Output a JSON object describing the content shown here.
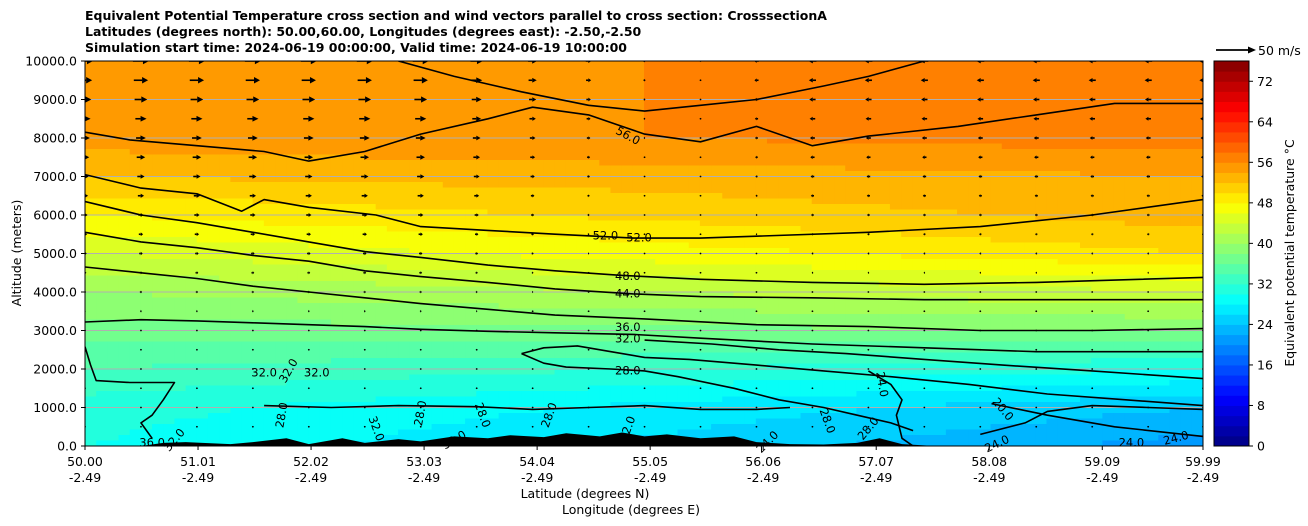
{
  "chart_data": {
    "type": "contourf",
    "title_lines": [
      "Equivalent Potential Temperature cross section and wind vectors parallel to cross section: CrosssectionA",
      "Latitudes (degrees north): 50.00,60.00, Longitudes (degrees east): -2.50,-2.50",
      "Simulation start time: 2024-06-19 00:00:00, Valid time: 2024-06-19 10:00:00"
    ],
    "xlabel_lines": [
      "Latitude (degrees N)",
      "Longitude (degrees E)"
    ],
    "ylabel": "Altitude (meters)",
    "x_ticks": [
      {
        "lat": "50.00",
        "lon": "-2.49"
      },
      {
        "lat": "51.01",
        "lon": "-2.49"
      },
      {
        "lat": "52.02",
        "lon": "-2.49"
      },
      {
        "lat": "53.03",
        "lon": "-2.49"
      },
      {
        "lat": "54.04",
        "lon": "-2.49"
      },
      {
        "lat": "55.05",
        "lon": "-2.49"
      },
      {
        "lat": "56.06",
        "lon": "-2.49"
      },
      {
        "lat": "57.07",
        "lon": "-2.49"
      },
      {
        "lat": "58.08",
        "lon": "-2.49"
      },
      {
        "lat": "59.09",
        "lon": "-2.49"
      },
      {
        "lat": "59.99",
        "lon": "-2.49"
      }
    ],
    "xlim": [
      50.0,
      59.99
    ],
    "ylim": [
      0,
      10000
    ],
    "y_ticks": [
      "0.0",
      "1000.0",
      "2000.0",
      "3000.0",
      "4000.0",
      "5000.0",
      "6000.0",
      "7000.0",
      "8000.0",
      "9000.0",
      "10000.0"
    ],
    "grid": "horizontal",
    "colorbar": {
      "label": "Equivalent potential temperature °C",
      "range": [
        0,
        76
      ],
      "ticks": [
        "0",
        "8",
        "16",
        "24",
        "32",
        "40",
        "48",
        "56",
        "64",
        "72"
      ],
      "colormap": "jet"
    },
    "quiver_key": {
      "label": "50 m/s",
      "speed": 50
    },
    "contours": [
      {
        "level": 56.0,
        "points": [
          [
            50.0,
            8150
          ],
          [
            50.4,
            7950
          ],
          [
            51.0,
            7800
          ],
          [
            51.6,
            7650
          ],
          [
            52.0,
            7400
          ],
          [
            52.5,
            7650
          ],
          [
            53.0,
            8100
          ],
          [
            53.6,
            8500
          ],
          [
            54.0,
            8800
          ],
          [
            54.5,
            8600
          ],
          [
            55.0,
            8100
          ],
          [
            55.5,
            7900
          ],
          [
            56.0,
            8300
          ],
          [
            56.5,
            7800
          ],
          [
            57.0,
            8050
          ],
          [
            57.8,
            8300
          ],
          [
            58.5,
            8600
          ],
          [
            59.2,
            8900
          ],
          [
            59.99,
            8900
          ]
        ]
      },
      {
        "level": 56.0,
        "points": [
          [
            52.8,
            10000
          ],
          [
            53.3,
            9600
          ],
          [
            53.9,
            9200
          ],
          [
            54.5,
            8850
          ],
          [
            55.0,
            8700
          ],
          [
            55.5,
            8850
          ],
          [
            56.0,
            9000
          ],
          [
            56.6,
            9350
          ],
          [
            57.0,
            9600
          ],
          [
            57.5,
            10000
          ]
        ]
      },
      {
        "level": 52.0,
        "points": [
          [
            50.0,
            7050
          ],
          [
            50.5,
            6700
          ],
          [
            51.0,
            6550
          ],
          [
            51.4,
            6100
          ],
          [
            51.6,
            6400
          ],
          [
            52.0,
            6200
          ],
          [
            52.6,
            6000
          ],
          [
            53.0,
            5700
          ],
          [
            53.6,
            5600
          ],
          [
            54.2,
            5500
          ],
          [
            54.9,
            5400
          ],
          [
            55.5,
            5400
          ],
          [
            56.0,
            5450
          ],
          [
            57.0,
            5550
          ],
          [
            58.0,
            5700
          ],
          [
            59.0,
            6000
          ],
          [
            59.99,
            6400
          ]
        ]
      },
      {
        "level": 48.0,
        "points": [
          [
            50.0,
            6350
          ],
          [
            50.5,
            6000
          ],
          [
            51.0,
            5800
          ],
          [
            51.5,
            5550
          ],
          [
            52.0,
            5300
          ],
          [
            52.5,
            5050
          ],
          [
            53.0,
            4900
          ],
          [
            53.6,
            4700
          ],
          [
            54.2,
            4550
          ],
          [
            54.8,
            4430
          ],
          [
            55.5,
            4330
          ],
          [
            56.5,
            4250
          ],
          [
            57.5,
            4200
          ],
          [
            58.5,
            4250
          ],
          [
            59.99,
            4380
          ]
        ]
      },
      {
        "level": 44.0,
        "points": [
          [
            50.0,
            5550
          ],
          [
            50.5,
            5300
          ],
          [
            51.0,
            5150
          ],
          [
            51.5,
            4950
          ],
          [
            52.0,
            4800
          ],
          [
            52.5,
            4550
          ],
          [
            53.0,
            4400
          ],
          [
            53.6,
            4250
          ],
          [
            54.2,
            4080
          ],
          [
            54.9,
            3950
          ],
          [
            55.5,
            3880
          ],
          [
            56.5,
            3850
          ],
          [
            57.5,
            3800
          ],
          [
            58.5,
            3800
          ],
          [
            59.99,
            3800
          ]
        ]
      },
      {
        "level": 40.0,
        "points": [
          [
            50.0,
            4650
          ],
          [
            50.5,
            4500
          ],
          [
            51.0,
            4350
          ],
          [
            51.5,
            4150
          ],
          [
            52.0,
            4000
          ],
          [
            52.5,
            3850
          ],
          [
            53.0,
            3700
          ],
          [
            53.6,
            3550
          ],
          [
            54.2,
            3400
          ],
          [
            55.0,
            3300
          ],
          [
            56.0,
            3150
          ],
          [
            57.0,
            3100
          ],
          [
            58.0,
            3000
          ],
          [
            59.0,
            3000
          ],
          [
            59.99,
            3050
          ]
        ]
      },
      {
        "level": 36.0,
        "points": [
          [
            50.0,
            3220
          ],
          [
            50.5,
            3280
          ],
          [
            51.0,
            3250
          ],
          [
            51.5,
            3200
          ],
          [
            52.0,
            3150
          ],
          [
            52.5,
            3100
          ],
          [
            53.0,
            3030
          ],
          [
            53.6,
            2980
          ],
          [
            54.2,
            2940
          ],
          [
            54.9,
            2900
          ],
          [
            55.5,
            2800
          ],
          [
            56.5,
            2650
          ],
          [
            57.5,
            2550
          ],
          [
            58.5,
            2450
          ],
          [
            59.99,
            2450
          ]
        ]
      },
      {
        "level": 32.0,
        "points": [
          [
            55.0,
            2750
          ],
          [
            55.6,
            2650
          ],
          [
            56.2,
            2500
          ],
          [
            56.8,
            2400
          ],
          [
            57.5,
            2250
          ],
          [
            58.2,
            2100
          ],
          [
            59.0,
            1950
          ],
          [
            59.99,
            1750
          ]
        ]
      },
      {
        "level": 32.0,
        "points": [
          [
            50.0,
            2580
          ],
          [
            50.05,
            2100
          ],
          [
            50.1,
            1700
          ],
          [
            50.4,
            1650
          ],
          [
            50.8,
            1650
          ],
          [
            50.7,
            1200
          ],
          [
            50.6,
            800
          ],
          [
            50.5,
            600
          ],
          [
            50.6,
            200
          ]
        ]
      },
      {
        "level": 28.0,
        "points": [
          [
            53.9,
            2400
          ],
          [
            54.1,
            2550
          ],
          [
            54.4,
            2600
          ],
          [
            54.7,
            2450
          ],
          [
            55.0,
            2300
          ],
          [
            55.4,
            2250
          ],
          [
            56.0,
            2100
          ],
          [
            56.6,
            1950
          ],
          [
            57.2,
            1800
          ],
          [
            57.9,
            1600
          ],
          [
            58.6,
            1350
          ],
          [
            59.3,
            1200
          ],
          [
            59.99,
            1050
          ]
        ]
      },
      {
        "level": 28.0,
        "points": [
          [
            53.9,
            2400
          ],
          [
            54.1,
            2150
          ],
          [
            54.3,
            2050
          ],
          [
            54.7,
            2000
          ],
          [
            55.0,
            1950
          ],
          [
            55.3,
            1800
          ],
          [
            55.8,
            1500
          ],
          [
            56.2,
            1200
          ],
          [
            56.6,
            1000
          ],
          [
            56.9,
            800
          ],
          [
            57.2,
            600
          ],
          [
            57.4,
            400
          ]
        ]
      },
      {
        "level": 28.0,
        "points": [
          [
            51.6,
            1050
          ],
          [
            52.2,
            1000
          ],
          [
            52.8,
            1050
          ],
          [
            53.5,
            1020
          ],
          [
            54.0,
            950
          ],
          [
            54.5,
            1000
          ],
          [
            55.0,
            1050
          ],
          [
            55.5,
            950
          ],
          [
            56.0,
            950
          ],
          [
            56.3,
            1000
          ]
        ]
      },
      {
        "level": 24.0,
        "points": [
          [
            57.0,
            1950
          ],
          [
            57.2,
            1600
          ],
          [
            57.3,
            1200
          ],
          [
            57.25,
            800
          ],
          [
            57.3,
            200
          ],
          [
            57.4,
            0
          ]
        ]
      },
      {
        "level": 24.0,
        "points": [
          [
            58.0,
            300
          ],
          [
            58.4,
            600
          ],
          [
            58.6,
            900
          ],
          [
            59.0,
            1050
          ],
          [
            59.5,
            1000
          ],
          [
            59.99,
            950
          ]
        ]
      },
      {
        "level": 20.0,
        "points": [
          [
            58.1,
            1100
          ],
          [
            58.6,
            800
          ],
          [
            59.2,
            500
          ],
          [
            59.99,
            250
          ]
        ]
      }
    ],
    "contour_labels": [
      {
        "text": "56.0",
        "lat": 54.85,
        "alt": 8050,
        "rot": 28
      },
      {
        "text": "52.0",
        "lat": 54.65,
        "alt": 5450,
        "rot": 0
      },
      {
        "text": "52.0",
        "lat": 54.95,
        "alt": 5400,
        "rot": 0
      },
      {
        "text": "48.0",
        "lat": 54.85,
        "alt": 4400,
        "rot": 0
      },
      {
        "text": "44.0",
        "lat": 54.85,
        "alt": 3950,
        "rot": 0
      },
      {
        "text": "36.0",
        "lat": 54.85,
        "alt": 3080,
        "rot": 0
      },
      {
        "text": "32.0",
        "lat": 54.85,
        "alt": 2780,
        "rot": 0
      },
      {
        "text": "28.0",
        "lat": 54.85,
        "alt": 1950,
        "rot": 0
      },
      {
        "text": "32.0",
        "lat": 51.6,
        "alt": 1900,
        "rot": 0
      },
      {
        "text": "32.0",
        "lat": 51.82,
        "alt": 1950,
        "rot": -60
      },
      {
        "text": "32.0",
        "lat": 52.07,
        "alt": 1900,
        "rot": 0
      },
      {
        "text": "28.0",
        "lat": 51.76,
        "alt": 800,
        "rot": -80
      },
      {
        "text": "28.0",
        "lat": 53.0,
        "alt": 850,
        "rot": -80
      },
      {
        "text": "28.0",
        "lat": 53.55,
        "alt": 800,
        "rot": 70
      },
      {
        "text": "28.0",
        "lat": 54.15,
        "alt": 800,
        "rot": -70
      },
      {
        "text": "28.0",
        "lat": 56.63,
        "alt": 650,
        "rot": 70
      },
      {
        "text": "28.0",
        "lat": 57.0,
        "alt": 450,
        "rot": -50
      },
      {
        "text": "24.0",
        "lat": 57.12,
        "alt": 1600,
        "rot": 80
      },
      {
        "text": "24.0",
        "lat": 56.1,
        "alt": 100,
        "rot": -45
      },
      {
        "text": "20.0",
        "lat": 58.2,
        "alt": 950,
        "rot": 50
      },
      {
        "text": "24.0",
        "lat": 58.15,
        "alt": 50,
        "rot": -25
      },
      {
        "text": "24.0",
        "lat": 59.35,
        "alt": 80,
        "rot": 0
      },
      {
        "text": "24.0",
        "lat": 59.75,
        "alt": 200,
        "rot": -15
      },
      {
        "text": "32.0",
        "lat": 52.6,
        "alt": 450,
        "rot": 70
      },
      {
        "text": "32.0",
        "lat": 53.3,
        "alt": 150,
        "rot": -30
      },
      {
        "text": "32.0",
        "lat": 54.85,
        "alt": 450,
        "rot": -70
      },
      {
        "text": "36.0",
        "lat": 50.6,
        "alt": 80,
        "rot": 0
      },
      {
        "text": "32.0",
        "lat": 50.8,
        "alt": 150,
        "rot": -50
      }
    ],
    "orography": [
      [
        50.0,
        0
      ],
      [
        50.5,
        0
      ],
      [
        50.7,
        80
      ],
      [
        50.9,
        100
      ],
      [
        51.3,
        50
      ],
      [
        51.5,
        100
      ],
      [
        51.8,
        200
      ],
      [
        52.0,
        50
      ],
      [
        52.3,
        200
      ],
      [
        52.5,
        80
      ],
      [
        52.8,
        180
      ],
      [
        53.0,
        120
      ],
      [
        53.3,
        250
      ],
      [
        53.6,
        200
      ],
      [
        53.8,
        280
      ],
      [
        54.1,
        230
      ],
      [
        54.3,
        330
      ],
      [
        54.6,
        250
      ],
      [
        54.8,
        350
      ],
      [
        55.0,
        250
      ],
      [
        55.2,
        300
      ],
      [
        55.5,
        200
      ],
      [
        55.8,
        250
      ],
      [
        56.0,
        100
      ],
      [
        56.3,
        50
      ],
      [
        56.6,
        40
      ],
      [
        56.9,
        80
      ],
      [
        57.1,
        200
      ],
      [
        57.3,
        50
      ],
      [
        57.6,
        0
      ],
      [
        59.99,
        0
      ]
    ],
    "theta_e_profile_west": [
      [
        0,
        30
      ],
      [
        1000,
        31
      ],
      [
        2000,
        34
      ],
      [
        3000,
        37
      ],
      [
        4000,
        40
      ],
      [
        5000,
        44
      ],
      [
        6000,
        48
      ],
      [
        7000,
        52
      ],
      [
        8000,
        55
      ],
      [
        9000,
        55
      ],
      [
        10000,
        55
      ]
    ],
    "theta_e_profile_east": [
      [
        0,
        21
      ],
      [
        1000,
        24
      ],
      [
        2000,
        30
      ],
      [
        3000,
        38
      ],
      [
        4000,
        44
      ],
      [
        5000,
        50
      ],
      [
        6000,
        53
      ],
      [
        7000,
        54
      ],
      [
        8000,
        57
      ],
      [
        9000,
        57
      ],
      [
        10000,
        57
      ]
    ],
    "wind": {
      "rows_alt": [
        10000,
        9500,
        9000,
        8500,
        8000,
        7500,
        7000,
        6500,
        6000,
        5500,
        5000,
        4500,
        4000,
        3500,
        3000,
        2500,
        2000,
        1500,
        1000,
        500,
        0
      ],
      "cols_lat": [
        50.0,
        50.5,
        51.0,
        51.5,
        52.0,
        52.5,
        53.0,
        53.5,
        54.0,
        54.5,
        55.0,
        55.5,
        56.0,
        56.5,
        57.0,
        57.5,
        58.0,
        58.5,
        59.0,
        59.5,
        59.99
      ],
      "u_upper_west_ms": 20,
      "u_upper_east_ms": -10
    }
  }
}
